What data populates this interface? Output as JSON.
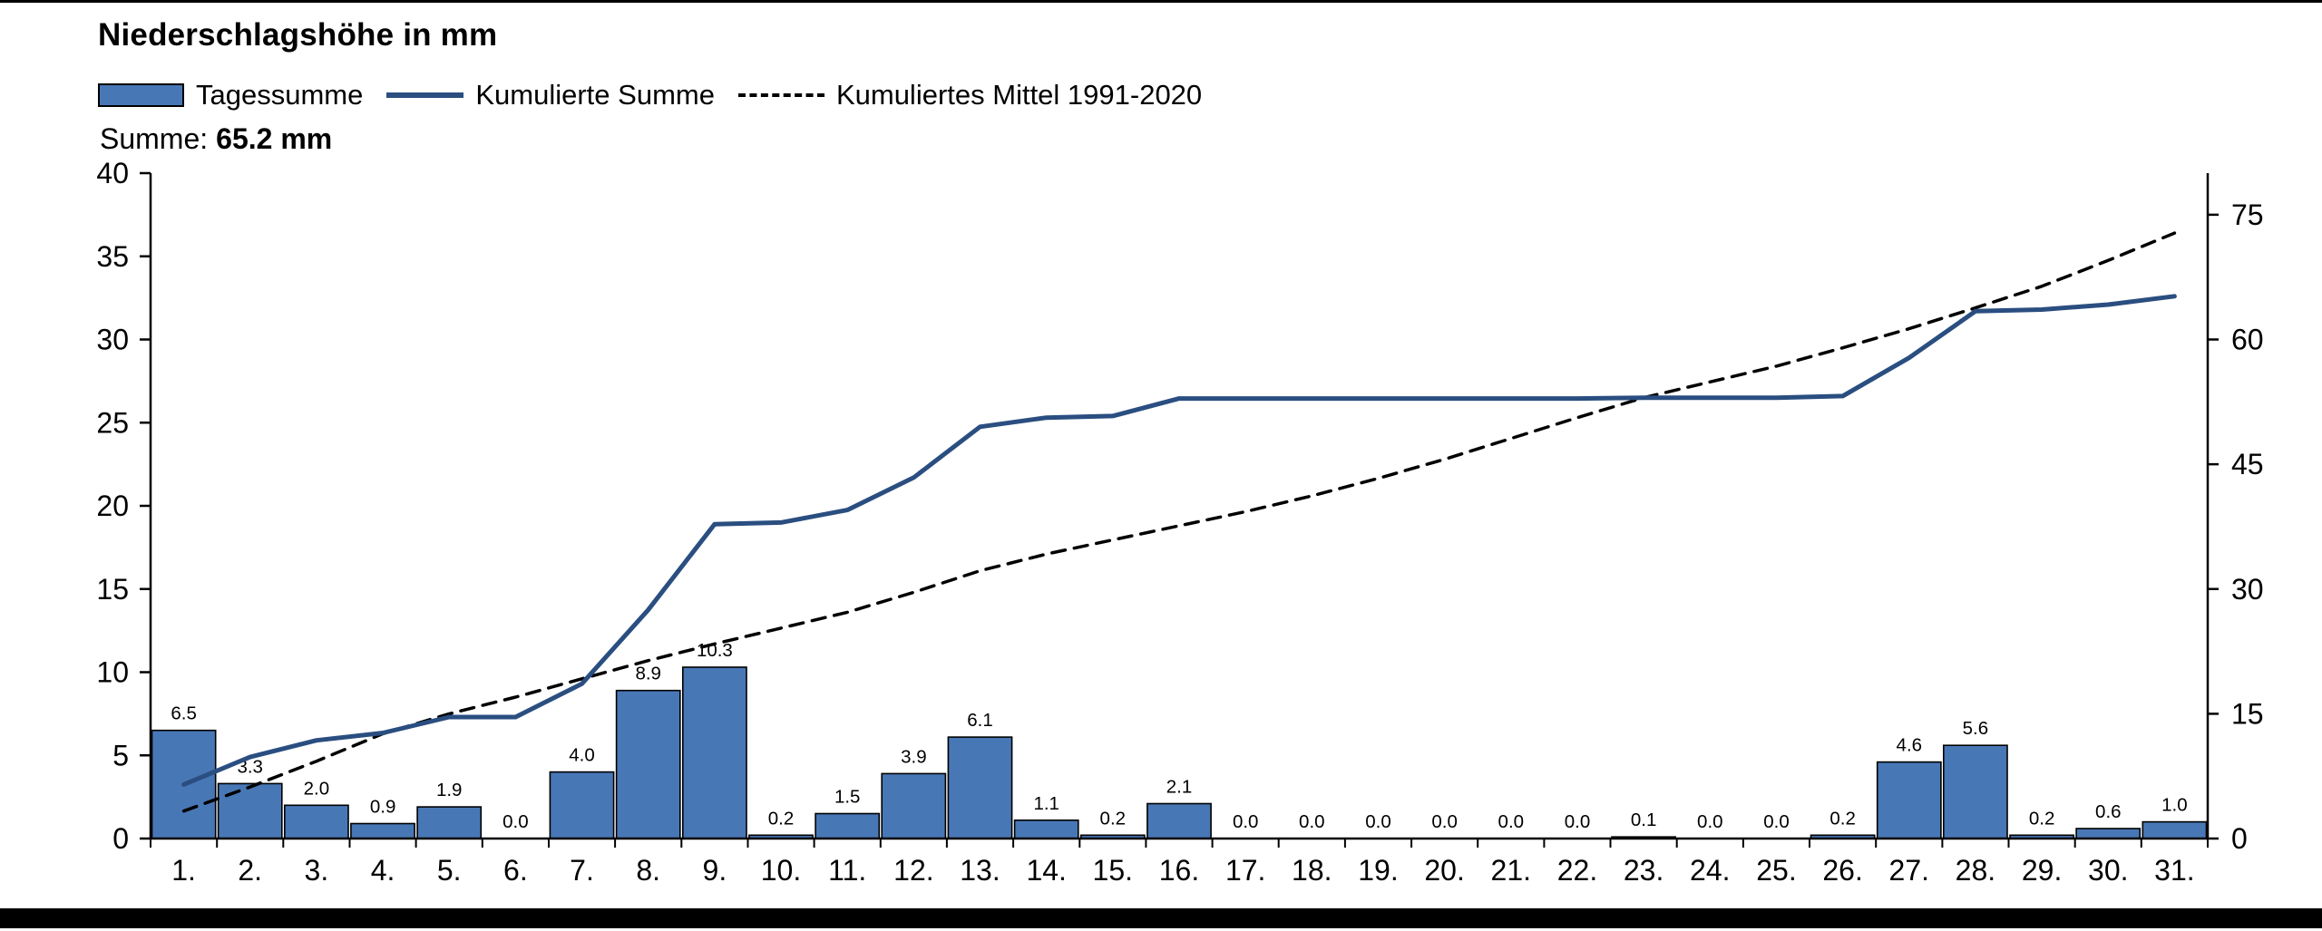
{
  "chart_data": {
    "type": "bar",
    "title": "Niederschlagshöhe in mm",
    "annotation": {
      "label": "Summe:",
      "value": "65.2 mm"
    },
    "categories": [
      "1.",
      "2.",
      "3.",
      "4.",
      "5.",
      "6.",
      "7.",
      "8.",
      "9.",
      "10.",
      "11.",
      "12.",
      "13.",
      "14.",
      "15.",
      "16.",
      "17.",
      "18.",
      "19.",
      "20.",
      "21.",
      "22.",
      "23.",
      "24.",
      "25.",
      "26.",
      "27.",
      "28.",
      "29.",
      "30.",
      "31."
    ],
    "series": [
      {
        "name": "Tagessumme",
        "type": "bar",
        "axis": "left",
        "color": "#4877B6",
        "border_color": "#000000",
        "data_labels": true,
        "label_decimals": 1,
        "values": [
          6.5,
          3.3,
          2.0,
          0.9,
          1.9,
          0.0,
          4.0,
          8.9,
          10.3,
          0.2,
          1.5,
          3.9,
          6.1,
          1.1,
          0.2,
          2.1,
          0.0,
          0.0,
          0.0,
          0.0,
          0.0,
          0.0,
          0.1,
          0.0,
          0.0,
          0.2,
          4.6,
          5.6,
          0.2,
          0.6,
          1.0
        ]
      },
      {
        "name": "Kumulierte Summe",
        "type": "line",
        "axis": "right",
        "dashed": false,
        "color": "#2A4E80",
        "values": [
          6.5,
          9.8,
          11.8,
          12.7,
          14.6,
          14.6,
          18.6,
          27.5,
          37.8,
          38.0,
          39.5,
          43.4,
          49.5,
          50.6,
          50.8,
          52.9,
          52.9,
          52.9,
          52.9,
          52.9,
          52.9,
          52.9,
          53.0,
          53.0,
          53.0,
          53.2,
          57.8,
          63.4,
          63.6,
          64.2,
          65.2
        ]
      },
      {
        "name": "Kumuliertes Mittel 1991-2020",
        "type": "line",
        "axis": "right",
        "dashed": true,
        "color": "#000000",
        "values": [
          3.3,
          6.2,
          9.3,
          12.6,
          15.0,
          17.0,
          19.2,
          21.4,
          23.4,
          25.3,
          27.2,
          29.6,
          32.2,
          34.2,
          35.9,
          37.6,
          39.3,
          41.2,
          43.3,
          45.6,
          48.1,
          50.6,
          53.0,
          54.9,
          56.8,
          59.0,
          61.3,
          63.8,
          66.4,
          69.5,
          72.8
        ]
      }
    ],
    "left_axis": {
      "min": 0,
      "max": 40,
      "ticks": [
        0,
        5,
        10,
        15,
        20,
        25,
        30,
        35,
        40
      ]
    },
    "right_axis": {
      "min": 0,
      "max": 80,
      "ticks": [
        0,
        15,
        30,
        45,
        60,
        75
      ]
    },
    "grid": false,
    "legend_position": "top-left",
    "text_color": "#000000"
  }
}
